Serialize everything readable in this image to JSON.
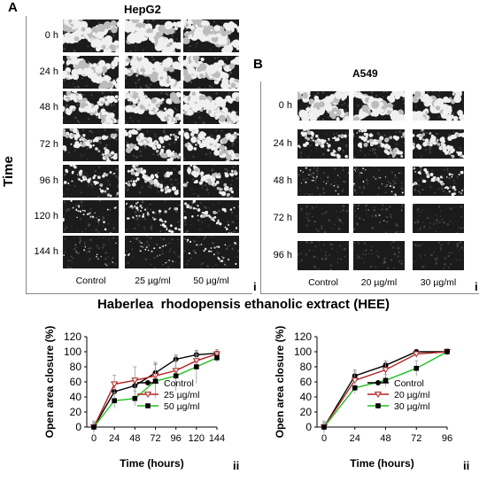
{
  "figure": {
    "panel_a": {
      "letter": "A",
      "title": "HepG2",
      "time_axis": "Time",
      "rows": [
        "0 h",
        "24 h",
        "48 h",
        "72 h",
        "96 h",
        "120 h",
        "144 h"
      ],
      "columns": [
        "Control",
        "25 µg/ml",
        "50 µg/ml"
      ],
      "sub_label": "i"
    },
    "panel_b": {
      "letter": "B",
      "title": "A549",
      "rows": [
        "0 h",
        "24 h",
        "48 h",
        "72 h",
        "96 h"
      ],
      "columns": [
        "Control",
        "20 µg/ml",
        "30 µg/ml"
      ],
      "sub_label": "i"
    },
    "extract_title": "Haberlea  rhodopensis ethanolic extract (HEE)"
  },
  "chart_data": [
    {
      "type": "line",
      "xlabel": "Time (hours)",
      "ylabel": "Open area closure (%)",
      "ylim": [
        0,
        120
      ],
      "yticks": [
        0,
        20,
        40,
        60,
        80,
        100,
        120
      ],
      "x": [
        0,
        24,
        48,
        72,
        96,
        120,
        144
      ],
      "sub_label": "ii",
      "legend_position": "bottom-right",
      "series": [
        {
          "name": "Control",
          "color": "#000000",
          "marker": "circle-filled",
          "values": [
            0,
            47,
            55,
            72,
            90,
            96,
            98
          ],
          "err": [
            5,
            5,
            5,
            12,
            6,
            5,
            5
          ]
        },
        {
          "name": "25 µg/ml",
          "color": "#b22222",
          "marker": "triangle-open",
          "values": [
            0,
            57,
            62,
            68,
            75,
            88,
            97
          ],
          "err": [
            8,
            12,
            18,
            18,
            20,
            8,
            6
          ]
        },
        {
          "name": "50 µg/ml",
          "color": "#22c022",
          "marker": "square-filled",
          "values": [
            0,
            35,
            38,
            61,
            68,
            80,
            92
          ],
          "err": [
            6,
            10,
            10,
            22,
            20,
            22,
            6
          ]
        }
      ]
    },
    {
      "type": "line",
      "xlabel": "Time (hours)",
      "ylabel": "Open area closure (%)",
      "ylim": [
        0,
        120
      ],
      "yticks": [
        0,
        20,
        40,
        60,
        80,
        100,
        120
      ],
      "x": [
        0,
        24,
        48,
        72,
        96
      ],
      "sub_label": "ii",
      "legend_position": "bottom-right",
      "series": [
        {
          "name": "Control",
          "color": "#000000",
          "marker": "circle-filled",
          "values": [
            0,
            68,
            82,
            100,
            100
          ],
          "err": [
            8,
            8,
            6,
            3,
            4
          ]
        },
        {
          "name": "20 µg/ml",
          "color": "#b22222",
          "marker": "triangle-open",
          "values": [
            0,
            62,
            76,
            97,
            100
          ],
          "err": [
            6,
            12,
            10,
            3,
            3
          ]
        },
        {
          "name": "30 µg/ml",
          "color": "#22c022",
          "marker": "square-filled",
          "values": [
            0,
            52,
            62,
            78,
            100
          ],
          "err": [
            5,
            8,
            8,
            10,
            4
          ]
        }
      ]
    }
  ]
}
